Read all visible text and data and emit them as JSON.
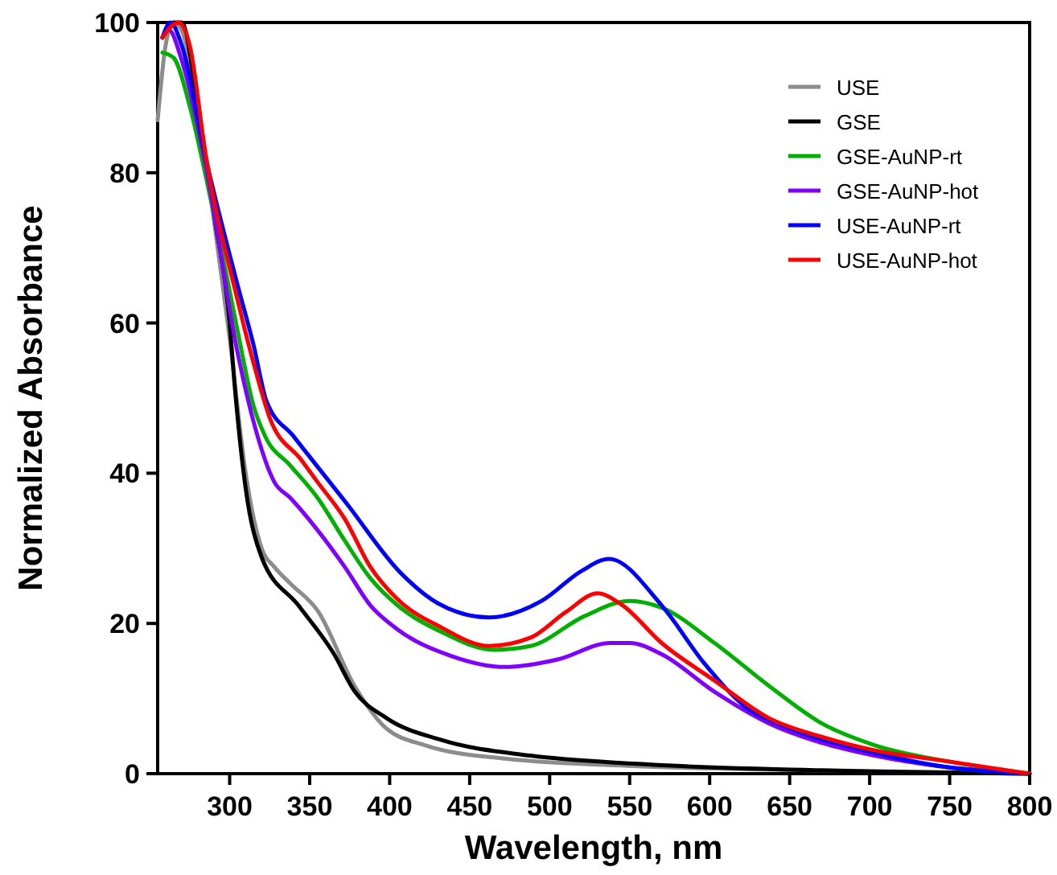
{
  "chart_data": {
    "type": "line",
    "xlabel": "Wavelength, nm",
    "ylabel": "Normalized Absorbance",
    "xlim": [
      255,
      800
    ],
    "ylim": [
      0,
      100
    ],
    "xticks": [
      300,
      350,
      400,
      450,
      500,
      550,
      600,
      650,
      700,
      750,
      800
    ],
    "yticks": [
      0,
      20,
      40,
      60,
      80,
      100
    ],
    "grid": false,
    "legend": "top right",
    "marker": "none",
    "line_style": "solid",
    "series": [
      {
        "name": "USE",
        "color": "#8c8c8c",
        "x": [
          255,
          260,
          265,
          270,
          280,
          290,
          300,
          310,
          320,
          328,
          338,
          355,
          378,
          398,
          422,
          472,
          555,
          650,
          800
        ],
        "values": [
          87,
          97,
          100,
          99,
          88,
          74,
          58,
          40,
          30,
          27.5,
          25.3,
          21.7,
          11.7,
          6,
          3.8,
          2,
          1,
          0.5,
          0
        ]
      },
      {
        "name": "GSE",
        "color": "#000000",
        "x": [
          258,
          265,
          270,
          280,
          290,
          300,
          303,
          310,
          320,
          343,
          365,
          378,
          398,
          432,
          488,
          555,
          700,
          800
        ],
        "values": [
          98,
          100,
          100,
          89,
          74.7,
          60,
          52,
          38,
          28.8,
          22.4,
          16,
          11,
          7.4,
          4.5,
          2.4,
          1.3,
          0.3,
          0
        ]
      },
      {
        "name": "GSE-AuNP-rt",
        "color": "#00b000",
        "x": [
          258,
          265,
          275,
          285,
          295,
          305,
          315,
          322,
          338,
          355,
          372,
          388,
          405,
          432,
          465,
          488,
          522,
          550,
          570,
          603,
          637,
          670,
          703,
          747,
          800
        ],
        "values": [
          96,
          95.3,
          88.9,
          79.6,
          69.6,
          58.9,
          48.9,
          45,
          41,
          36.7,
          31,
          26,
          22.4,
          18.9,
          16.5,
          17,
          21,
          23,
          22.1,
          17.4,
          11.7,
          6.7,
          3.8,
          1.7,
          0
        ]
      },
      {
        "name": "GSE-AuNP-hot",
        "color": "#8000ff",
        "x": [
          258,
          262,
          270,
          285,
          305,
          315,
          328,
          338,
          355,
          372,
          388,
          405,
          438,
          472,
          505,
          538,
          550,
          570,
          603,
          637,
          670,
          703,
          747,
          800
        ],
        "values": [
          98,
          99,
          95,
          81,
          56,
          46.8,
          38.8,
          36.7,
          32.4,
          27.5,
          22.4,
          19.2,
          15.7,
          14.2,
          15.2,
          17.4,
          17.4,
          15.9,
          10.9,
          6.7,
          4.1,
          2.4,
          0.9,
          0
        ]
      },
      {
        "name": "USE-AuNP-rt",
        "color": "#0000ff",
        "x": [
          258,
          263,
          270,
          285,
          305,
          315,
          323,
          340,
          373,
          407,
          430,
          462,
          495,
          520,
          537,
          570,
          597,
          623,
          647,
          697,
          747,
          800
        ],
        "values": [
          98,
          100,
          97,
          82,
          65,
          57,
          49.6,
          44.9,
          36,
          26.7,
          22.7,
          20.8,
          23,
          27,
          28.6,
          22.4,
          14.6,
          8.8,
          6.3,
          3.1,
          0.9,
          0
        ]
      },
      {
        "name": "USE-AuNP-hot",
        "color": "#ff0000",
        "x": [
          258,
          268,
          275,
          285,
          305,
          315,
          325,
          345,
          355,
          372,
          388,
          405,
          432,
          462,
          488,
          510,
          530,
          545,
          570,
          603,
          637,
          670,
          703,
          747,
          800
        ],
        "values": [
          98,
          100,
          97,
          82.4,
          63,
          54.6,
          47.4,
          41.7,
          38.8,
          33.9,
          27.5,
          23.2,
          19.5,
          17,
          18.1,
          21.5,
          24,
          22.5,
          17.4,
          12.4,
          7.4,
          4.9,
          3.1,
          1.7,
          0
        ]
      }
    ]
  }
}
